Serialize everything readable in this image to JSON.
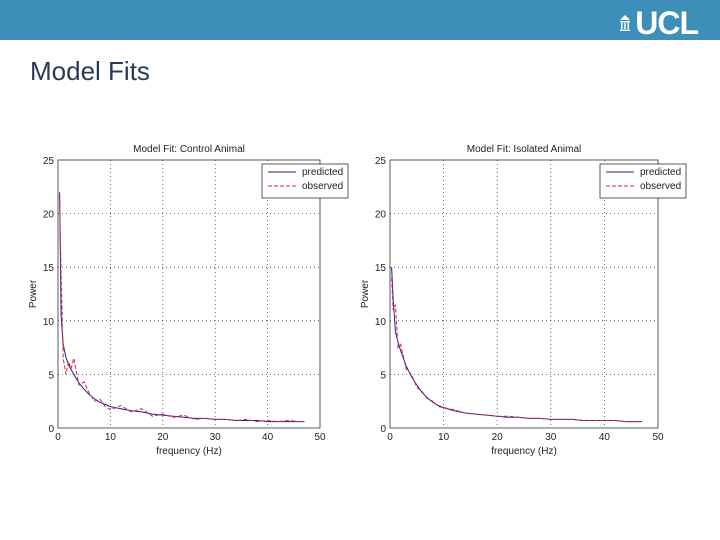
{
  "header": {
    "logo_text": "UCL",
    "title": "Model Fits"
  },
  "colors": {
    "bar": "#3d8fba",
    "predicted": "#1f1f9e",
    "observed": "#d42a3c",
    "title": "#283a55"
  },
  "chart_data": [
    {
      "type": "line",
      "title": "Model Fit: Control Animal",
      "xlabel": "frequency (Hz)",
      "ylabel": "Power",
      "xlim": [
        0,
        50
      ],
      "ylim": [
        0,
        25
      ],
      "xticks": [
        "0",
        "10",
        "20",
        "30",
        "40",
        "50"
      ],
      "yticks": [
        "0",
        "5",
        "10",
        "15",
        "20",
        "25"
      ],
      "grid": true,
      "legend_position": "top-right",
      "series": [
        {
          "name": "predicted",
          "style": "solid",
          "x": [
            0.3,
            0.6,
            1,
            1.5,
            2,
            3,
            4,
            5,
            6,
            7,
            8,
            9,
            10,
            12,
            14,
            16,
            18,
            20,
            22,
            24,
            26,
            28,
            30,
            32,
            34,
            36,
            38,
            40,
            42,
            44,
            46,
            47
          ],
          "y": [
            22.0,
            10.5,
            7.8,
            6.6,
            5.9,
            5.0,
            4.2,
            3.6,
            3.1,
            2.7,
            2.4,
            2.2,
            2.0,
            1.8,
            1.6,
            1.5,
            1.3,
            1.2,
            1.1,
            1.0,
            0.9,
            0.9,
            0.8,
            0.8,
            0.7,
            0.7,
            0.7,
            0.6,
            0.6,
            0.6,
            0.6,
            0.6
          ]
        },
        {
          "name": "observed",
          "style": "dashed",
          "x": [
            0.3,
            0.6,
            1,
            1.5,
            2,
            2.5,
            3,
            4,
            5,
            6,
            7,
            8,
            9,
            10,
            12,
            14,
            16,
            18,
            20,
            22,
            24,
            26,
            28,
            30,
            32,
            34,
            36,
            38,
            40,
            42,
            44,
            46,
            47
          ],
          "y": [
            21.5,
            14.5,
            6.5,
            5.0,
            6.2,
            5.5,
            6.5,
            4.0,
            4.3,
            3.2,
            2.5,
            2.7,
            2.0,
            1.7,
            2.1,
            1.5,
            1.8,
            1.1,
            1.3,
            1.0,
            1.2,
            0.8,
            0.9,
            0.8,
            0.8,
            0.7,
            0.8,
            0.6,
            0.7,
            0.6,
            0.7,
            0.6,
            0.6
          ]
        }
      ]
    },
    {
      "type": "line",
      "title": "Model Fit: Isolated Animal",
      "xlabel": "frequency (Hz)",
      "ylabel": "Power",
      "xlim": [
        0,
        50
      ],
      "ylim": [
        0,
        25
      ],
      "xticks": [
        "0",
        "10",
        "20",
        "30",
        "40",
        "50"
      ],
      "yticks": [
        "0",
        "5",
        "10",
        "15",
        "20",
        "25"
      ],
      "grid": true,
      "legend_position": "top-right",
      "series": [
        {
          "name": "predicted",
          "style": "solid",
          "x": [
            0.3,
            0.6,
            1,
            1.5,
            2,
            3,
            4,
            5,
            6,
            7,
            8,
            9,
            10,
            12,
            14,
            16,
            18,
            20,
            22,
            24,
            26,
            28,
            30,
            32,
            34,
            36,
            38,
            40,
            42,
            44,
            46,
            47
          ],
          "y": [
            15.0,
            12.0,
            9.0,
            8.0,
            7.2,
            5.8,
            4.8,
            4.0,
            3.3,
            2.8,
            2.4,
            2.1,
            1.9,
            1.6,
            1.4,
            1.3,
            1.2,
            1.1,
            1.0,
            1.0,
            0.9,
            0.9,
            0.8,
            0.8,
            0.8,
            0.7,
            0.7,
            0.7,
            0.7,
            0.6,
            0.6,
            0.6
          ]
        },
        {
          "name": "observed",
          "style": "dashed",
          "x": [
            0.3,
            0.6,
            1,
            1.5,
            2,
            3,
            4,
            5,
            6,
            7,
            8,
            9,
            10,
            12,
            14,
            16,
            18,
            20,
            22,
            24,
            26,
            28,
            30,
            32,
            34,
            36,
            38,
            40,
            42,
            44,
            46,
            47
          ],
          "y": [
            14.0,
            11.0,
            11.5,
            7.5,
            7.8,
            5.5,
            5.0,
            3.8,
            3.4,
            2.7,
            2.5,
            2.0,
            1.9,
            1.7,
            1.4,
            1.3,
            1.2,
            1.1,
            1.1,
            1.0,
            0.9,
            0.9,
            0.8,
            0.8,
            0.8,
            0.7,
            0.7,
            0.7,
            0.7,
            0.6,
            0.6,
            0.6
          ]
        }
      ]
    }
  ]
}
